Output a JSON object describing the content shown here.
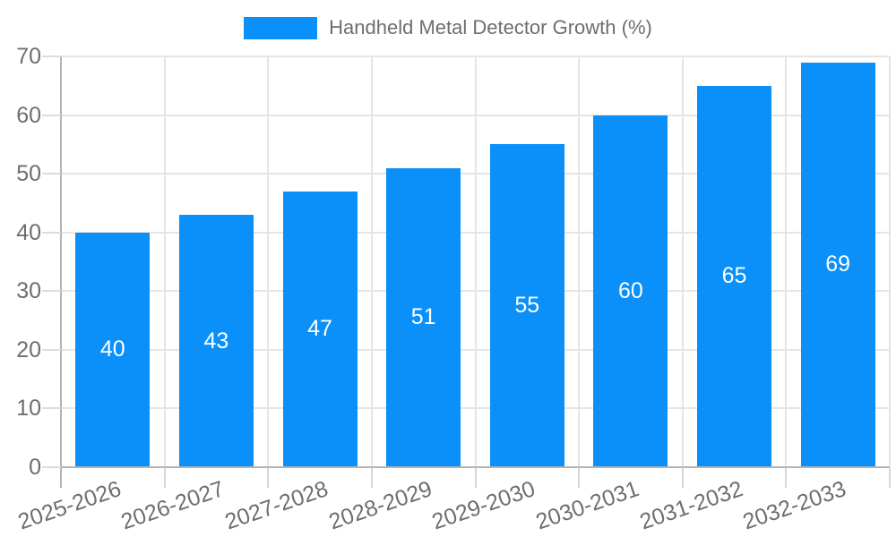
{
  "legend": {
    "label": "Handheld Metal Detector Growth (%)"
  },
  "colors": {
    "bar": "#0a90f8",
    "grid": "#e5e5e5",
    "axis": "#b3b3b3",
    "tick_text": "#6e6e6e",
    "bar_label_text": "#ffffff"
  },
  "chart_data": {
    "type": "bar",
    "title": "Handheld Metal Detector Growth (%)",
    "categories": [
      "2025-2026",
      "2026-2027",
      "2027-2028",
      "2028-2029",
      "2029-2030",
      "2030-2031",
      "2031-2032",
      "2032-2033"
    ],
    "values": [
      40,
      43,
      47,
      51,
      55,
      60,
      65,
      69
    ],
    "xlabel": "",
    "ylabel": "",
    "ylim": [
      0,
      70
    ],
    "yticks": [
      0,
      10,
      20,
      30,
      40,
      50,
      60,
      70
    ],
    "grid": "on",
    "legend_position": "top-center",
    "bar_value_labels": "inside-center",
    "x_tick_rotation_deg": -19
  }
}
